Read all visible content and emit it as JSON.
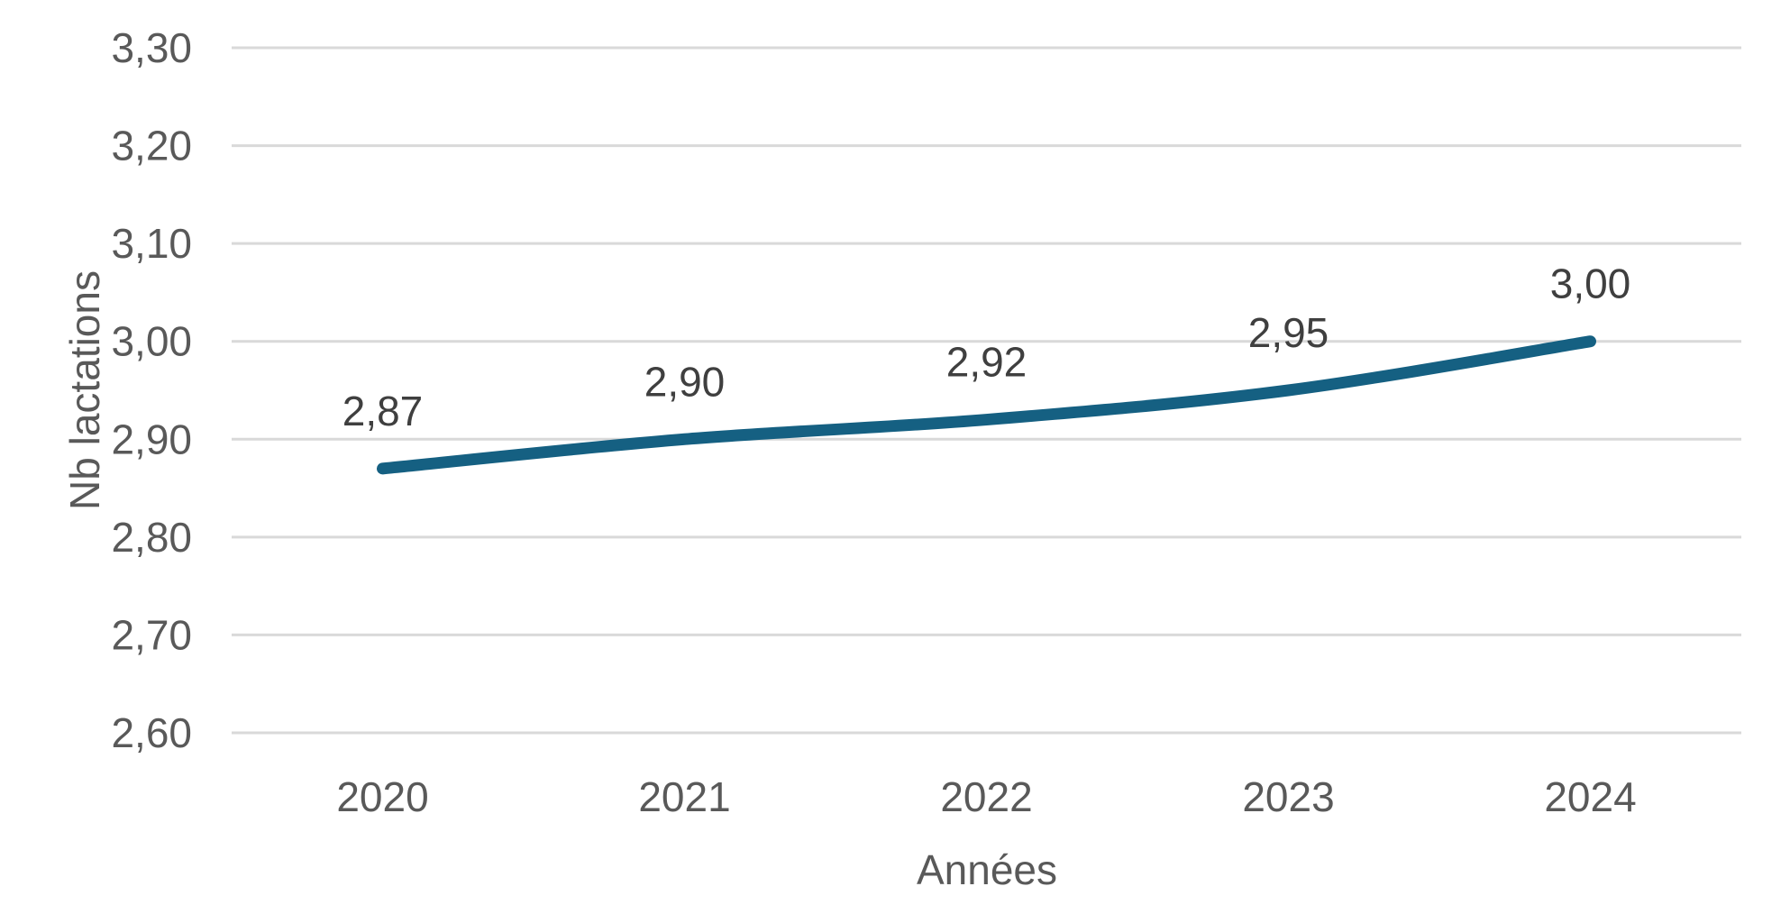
{
  "chart_data": {
    "type": "line",
    "title": "",
    "xlabel": "Années",
    "ylabel": "Nb lactations",
    "categories": [
      "2020",
      "2021",
      "2022",
      "2023",
      "2024"
    ],
    "values": [
      2.87,
      2.9,
      2.92,
      2.95,
      3.0
    ],
    "data_labels": [
      "2,87",
      "2,90",
      "2,92",
      "2,95",
      "3,00"
    ],
    "ytick_labels": [
      "2,60",
      "2,70",
      "2,80",
      "2,90",
      "3,00",
      "3,10",
      "3,20",
      "3,30"
    ],
    "ylim": [
      2.6,
      3.3
    ],
    "ytick_step": 0.1,
    "grid": true,
    "legend": false,
    "smoothed_line": true,
    "colors": {
      "line": "#156082",
      "gridline": "#D9D9D9",
      "tick_label": "#595959",
      "axis_title": "#595959",
      "data_label": "#3F3F3F",
      "background": "#FFFFFF"
    }
  }
}
